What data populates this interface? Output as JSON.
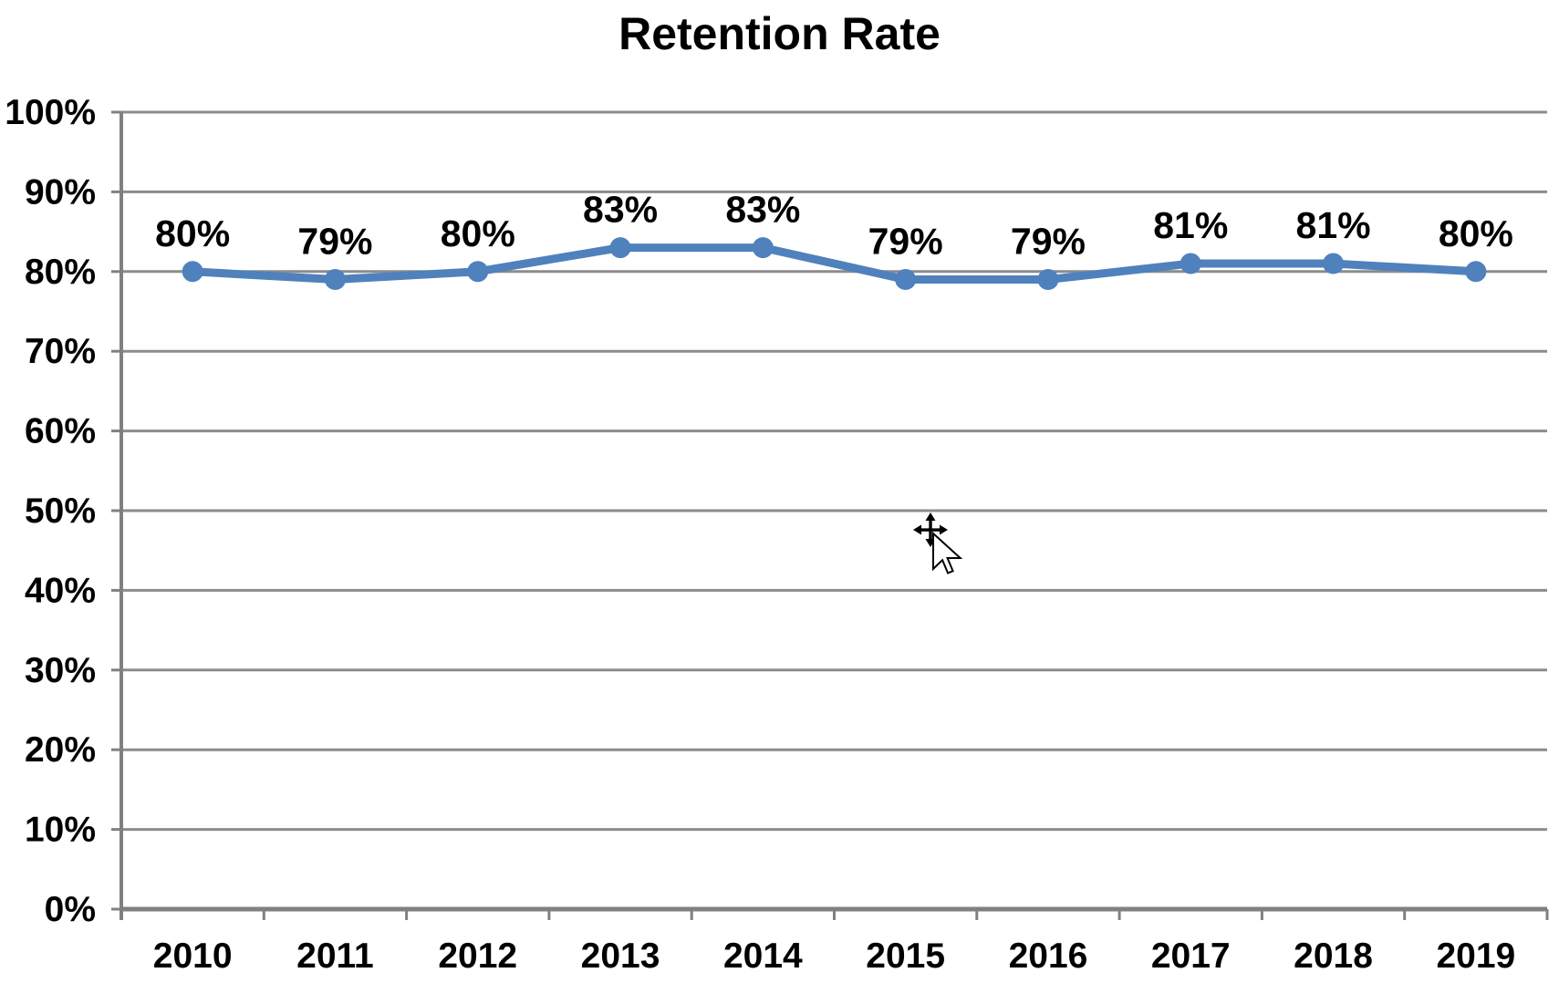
{
  "title": "Retention Rate",
  "chart_data": {
    "type": "line",
    "title": "Retention Rate",
    "categories": [
      "2010",
      "2011",
      "2012",
      "2013",
      "2014",
      "2015",
      "2016",
      "2017",
      "2018",
      "2019"
    ],
    "values": [
      80,
      79,
      80,
      83,
      83,
      79,
      79,
      81,
      81,
      80
    ],
    "data_labels": [
      "80%",
      "79%",
      "80%",
      "83%",
      "83%",
      "79%",
      "79%",
      "81%",
      "81%",
      "80%"
    ],
    "xlabel": "",
    "ylabel": "",
    "ylim": [
      0,
      100
    ],
    "ytick_step": 10,
    "ytick_labels": [
      "0%",
      "10%",
      "20%",
      "30%",
      "40%",
      "50%",
      "60%",
      "70%",
      "80%",
      "90%",
      "100%"
    ],
    "grid": "horizontal",
    "legend": "none",
    "colors": {
      "line": "#4F81BD",
      "marker": "#4F81BD",
      "grid": "#8C8C8C",
      "axis": "#808080",
      "text": "#000000",
      "background": "#FFFFFF"
    }
  },
  "cursor": {
    "icon": "move-pointer"
  }
}
